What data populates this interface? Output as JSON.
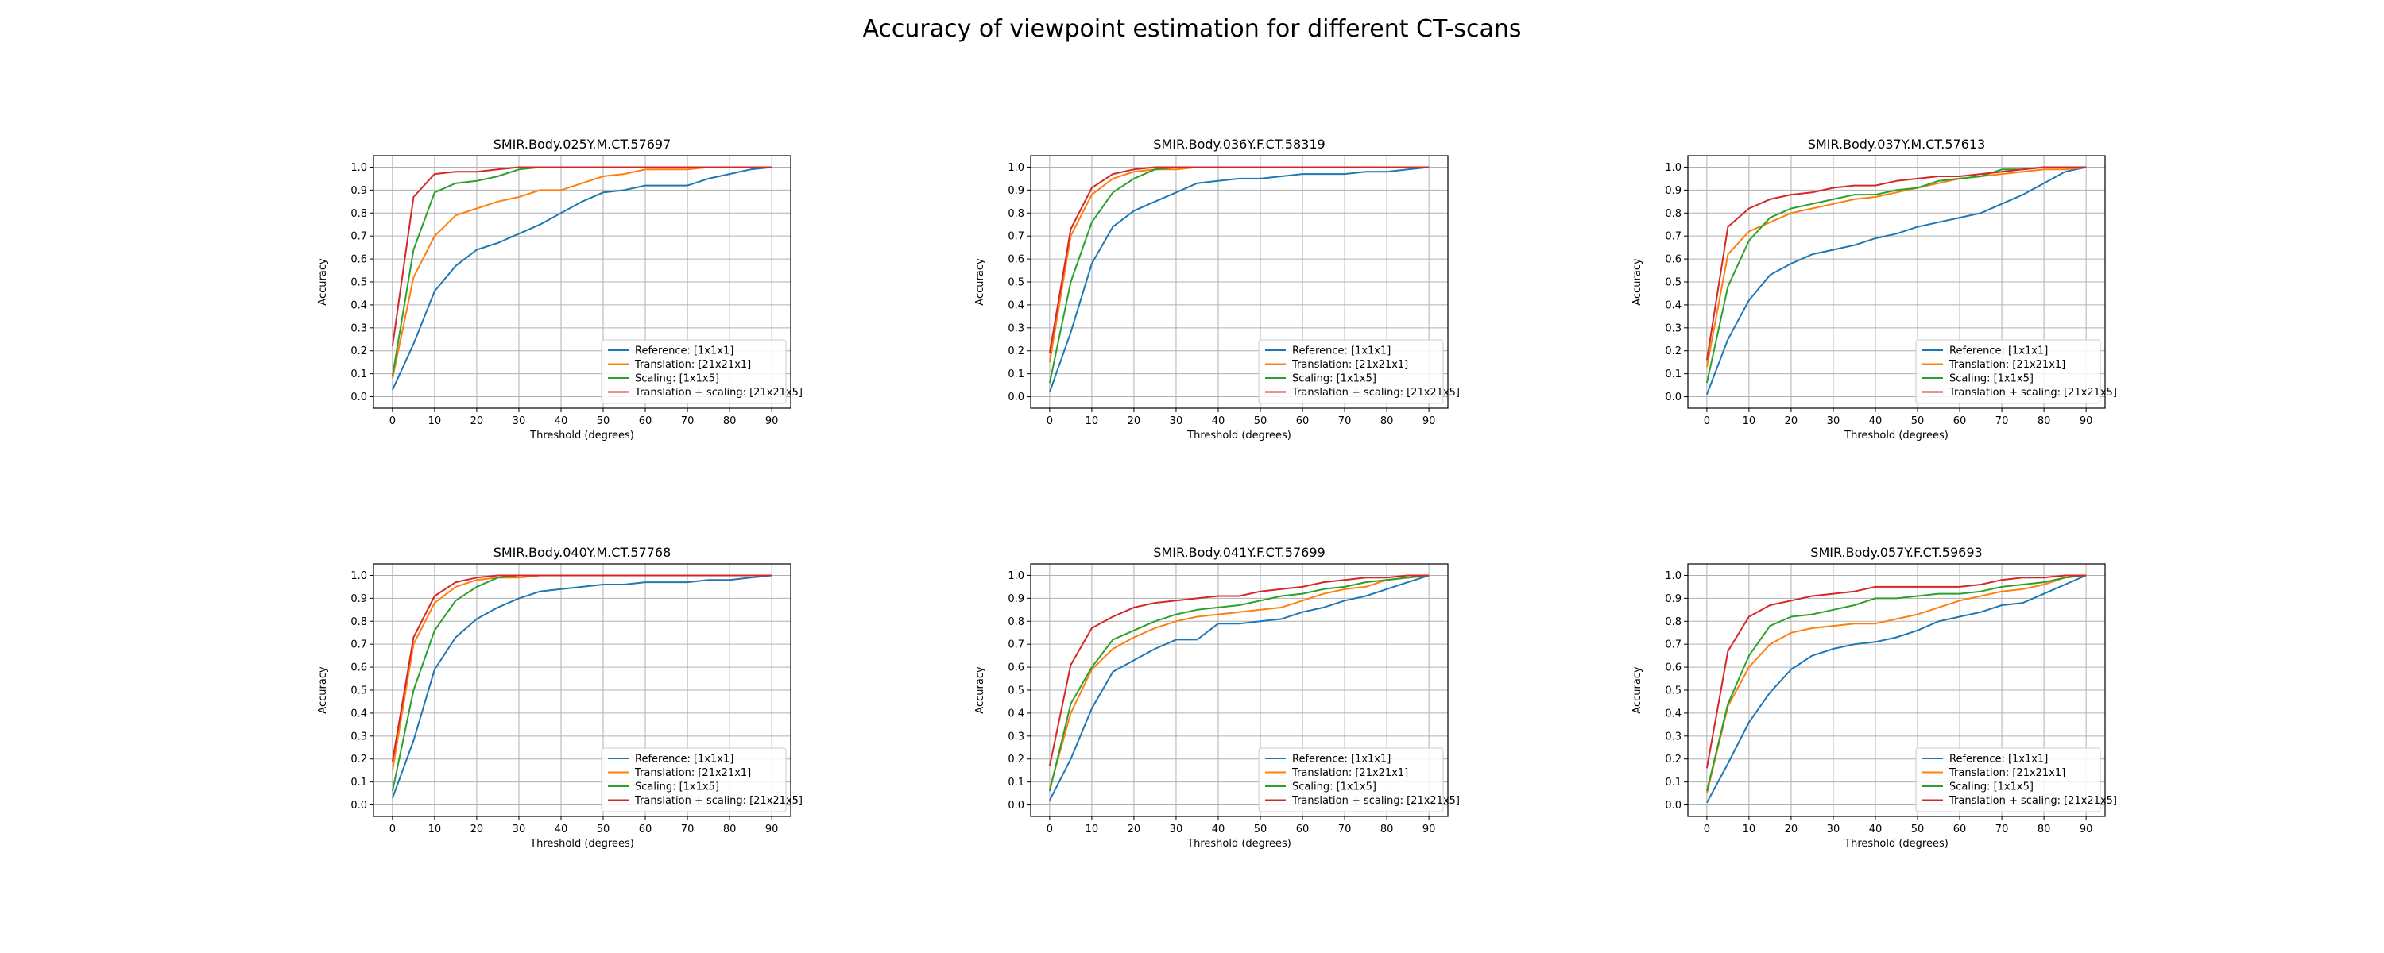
{
  "suptitle": "Accuracy of viewpoint estimation for different CT-scans",
  "series_styles": [
    {
      "name": "Reference: [1x1x1]",
      "color": "#1f77b4"
    },
    {
      "name": "Translation: [21x21x1]",
      "color": "#ff7f0e"
    },
    {
      "name": "Scaling: [1x1x5]",
      "color": "#2ca02c"
    },
    {
      "name": "Translation + scaling: [21x21x5]",
      "color": "#d62728"
    }
  ],
  "chart_data": [
    {
      "type": "line",
      "title": "SMIR.Body.025Y.M.CT.57697",
      "xlabel": "Threshold (degrees)",
      "ylabel": "Accuracy",
      "xlim": [
        0,
        90
      ],
      "ylim": [
        0,
        1
      ],
      "xticks": [
        0,
        10,
        20,
        30,
        40,
        50,
        60,
        70,
        80,
        90
      ],
      "yticks": [
        0.0,
        0.1,
        0.2,
        0.3,
        0.4,
        0.5,
        0.6,
        0.7,
        0.8,
        0.9,
        1.0
      ],
      "grid": true,
      "legend": "lower-right",
      "x": [
        0,
        5,
        10,
        15,
        20,
        25,
        30,
        35,
        40,
        45,
        50,
        55,
        60,
        65,
        70,
        75,
        80,
        85,
        90
      ],
      "series": [
        {
          "name": "Reference: [1x1x1]",
          "values": [
            0.03,
            0.23,
            0.46,
            0.57,
            0.64,
            0.67,
            0.71,
            0.75,
            0.8,
            0.85,
            0.89,
            0.9,
            0.92,
            0.92,
            0.92,
            0.95,
            0.97,
            0.99,
            1.0
          ]
        },
        {
          "name": "Translation: [21x21x1]",
          "values": [
            0.08,
            0.52,
            0.7,
            0.79,
            0.82,
            0.85,
            0.87,
            0.9,
            0.9,
            0.93,
            0.96,
            0.97,
            0.99,
            0.99,
            0.99,
            1.0,
            1.0,
            1.0,
            1.0
          ]
        },
        {
          "name": "Scaling: [1x1x5]",
          "values": [
            0.09,
            0.64,
            0.89,
            0.93,
            0.94,
            0.96,
            0.99,
            1.0,
            1.0,
            1.0,
            1.0,
            1.0,
            1.0,
            1.0,
            1.0,
            1.0,
            1.0,
            1.0,
            1.0
          ]
        },
        {
          "name": "Translation + scaling: [21x21x5]",
          "values": [
            0.22,
            0.87,
            0.97,
            0.98,
            0.98,
            0.99,
            1.0,
            1.0,
            1.0,
            1.0,
            1.0,
            1.0,
            1.0,
            1.0,
            1.0,
            1.0,
            1.0,
            1.0,
            1.0
          ]
        }
      ]
    },
    {
      "type": "line",
      "title": "SMIR.Body.036Y.F.CT.58319",
      "xlabel": "Threshold (degrees)",
      "ylabel": "Accuracy",
      "xlim": [
        0,
        90
      ],
      "ylim": [
        0,
        1
      ],
      "xticks": [
        0,
        10,
        20,
        30,
        40,
        50,
        60,
        70,
        80,
        90
      ],
      "yticks": [
        0.0,
        0.1,
        0.2,
        0.3,
        0.4,
        0.5,
        0.6,
        0.7,
        0.8,
        0.9,
        1.0
      ],
      "grid": true,
      "legend": "lower-right",
      "x": [
        0,
        5,
        10,
        15,
        20,
        25,
        30,
        35,
        40,
        45,
        50,
        55,
        60,
        65,
        70,
        75,
        80,
        85,
        90
      ],
      "series": [
        {
          "name": "Reference: [1x1x1]",
          "values": [
            0.02,
            0.28,
            0.58,
            0.74,
            0.81,
            0.85,
            0.89,
            0.93,
            0.94,
            0.95,
            0.95,
            0.96,
            0.97,
            0.97,
            0.97,
            0.98,
            0.98,
            0.99,
            1.0
          ]
        },
        {
          "name": "Translation: [21x21x1]",
          "values": [
            0.15,
            0.7,
            0.88,
            0.95,
            0.98,
            0.99,
            0.99,
            1.0,
            1.0,
            1.0,
            1.0,
            1.0,
            1.0,
            1.0,
            1.0,
            1.0,
            1.0,
            1.0,
            1.0
          ]
        },
        {
          "name": "Scaling: [1x1x5]",
          "values": [
            0.06,
            0.5,
            0.76,
            0.89,
            0.95,
            0.99,
            1.0,
            1.0,
            1.0,
            1.0,
            1.0,
            1.0,
            1.0,
            1.0,
            1.0,
            1.0,
            1.0,
            1.0,
            1.0
          ]
        },
        {
          "name": "Translation + scaling: [21x21x5]",
          "values": [
            0.19,
            0.73,
            0.91,
            0.97,
            0.99,
            1.0,
            1.0,
            1.0,
            1.0,
            1.0,
            1.0,
            1.0,
            1.0,
            1.0,
            1.0,
            1.0,
            1.0,
            1.0,
            1.0
          ]
        }
      ]
    },
    {
      "type": "line",
      "title": "SMIR.Body.037Y.M.CT.57613",
      "xlabel": "Threshold (degrees)",
      "ylabel": "Accuracy",
      "xlim": [
        0,
        90
      ],
      "ylim": [
        0,
        1
      ],
      "xticks": [
        0,
        10,
        20,
        30,
        40,
        50,
        60,
        70,
        80,
        90
      ],
      "yticks": [
        0.0,
        0.1,
        0.2,
        0.3,
        0.4,
        0.5,
        0.6,
        0.7,
        0.8,
        0.9,
        1.0
      ],
      "grid": true,
      "legend": "lower-right",
      "x": [
        0,
        5,
        10,
        15,
        20,
        25,
        30,
        35,
        40,
        45,
        50,
        55,
        60,
        65,
        70,
        75,
        80,
        85,
        90
      ],
      "series": [
        {
          "name": "Reference: [1x1x1]",
          "values": [
            0.01,
            0.25,
            0.42,
            0.53,
            0.58,
            0.62,
            0.64,
            0.66,
            0.69,
            0.71,
            0.74,
            0.76,
            0.78,
            0.8,
            0.84,
            0.88,
            0.93,
            0.98,
            1.0
          ]
        },
        {
          "name": "Translation: [21x21x1]",
          "values": [
            0.13,
            0.62,
            0.72,
            0.76,
            0.8,
            0.82,
            0.84,
            0.86,
            0.87,
            0.89,
            0.91,
            0.93,
            0.95,
            0.96,
            0.97,
            0.98,
            0.99,
            0.99,
            1.0
          ]
        },
        {
          "name": "Scaling: [1x1x5]",
          "values": [
            0.06,
            0.48,
            0.68,
            0.78,
            0.82,
            0.84,
            0.86,
            0.88,
            0.88,
            0.9,
            0.91,
            0.94,
            0.95,
            0.96,
            0.99,
            0.99,
            1.0,
            1.0,
            1.0
          ]
        },
        {
          "name": "Translation + scaling: [21x21x5]",
          "values": [
            0.16,
            0.74,
            0.82,
            0.86,
            0.88,
            0.89,
            0.91,
            0.92,
            0.92,
            0.94,
            0.95,
            0.96,
            0.96,
            0.97,
            0.98,
            0.99,
            1.0,
            1.0,
            1.0
          ]
        }
      ]
    },
    {
      "type": "line",
      "title": "SMIR.Body.040Y.M.CT.57768",
      "xlabel": "Threshold (degrees)",
      "ylabel": "Accuracy",
      "xlim": [
        0,
        90
      ],
      "ylim": [
        0,
        1
      ],
      "xticks": [
        0,
        10,
        20,
        30,
        40,
        50,
        60,
        70,
        80,
        90
      ],
      "yticks": [
        0.0,
        0.1,
        0.2,
        0.3,
        0.4,
        0.5,
        0.6,
        0.7,
        0.8,
        0.9,
        1.0
      ],
      "grid": true,
      "legend": "lower-right",
      "x": [
        0,
        5,
        10,
        15,
        20,
        25,
        30,
        35,
        40,
        45,
        50,
        55,
        60,
        65,
        70,
        75,
        80,
        85,
        90
      ],
      "series": [
        {
          "name": "Reference: [1x1x1]",
          "values": [
            0.03,
            0.28,
            0.59,
            0.73,
            0.81,
            0.86,
            0.9,
            0.93,
            0.94,
            0.95,
            0.96,
            0.96,
            0.97,
            0.97,
            0.97,
            0.98,
            0.98,
            0.99,
            1.0
          ]
        },
        {
          "name": "Translation: [21x21x1]",
          "values": [
            0.15,
            0.7,
            0.88,
            0.95,
            0.98,
            0.99,
            0.99,
            1.0,
            1.0,
            1.0,
            1.0,
            1.0,
            1.0,
            1.0,
            1.0,
            1.0,
            1.0,
            1.0,
            1.0
          ]
        },
        {
          "name": "Scaling: [1x1x5]",
          "values": [
            0.06,
            0.5,
            0.76,
            0.89,
            0.95,
            0.99,
            1.0,
            1.0,
            1.0,
            1.0,
            1.0,
            1.0,
            1.0,
            1.0,
            1.0,
            1.0,
            1.0,
            1.0,
            1.0
          ]
        },
        {
          "name": "Translation + scaling: [21x21x5]",
          "values": [
            0.19,
            0.73,
            0.91,
            0.97,
            0.99,
            1.0,
            1.0,
            1.0,
            1.0,
            1.0,
            1.0,
            1.0,
            1.0,
            1.0,
            1.0,
            1.0,
            1.0,
            1.0,
            1.0
          ]
        }
      ]
    },
    {
      "type": "line",
      "title": "SMIR.Body.041Y.F.CT.57699",
      "xlabel": "Threshold (degrees)",
      "ylabel": "Accuracy",
      "xlim": [
        0,
        90
      ],
      "ylim": [
        0,
        1
      ],
      "xticks": [
        0,
        10,
        20,
        30,
        40,
        50,
        60,
        70,
        80,
        90
      ],
      "yticks": [
        0.0,
        0.1,
        0.2,
        0.3,
        0.4,
        0.5,
        0.6,
        0.7,
        0.8,
        0.9,
        1.0
      ],
      "grid": true,
      "legend": "lower-right",
      "x": [
        0,
        5,
        10,
        15,
        20,
        25,
        30,
        35,
        40,
        45,
        50,
        55,
        60,
        65,
        70,
        75,
        80,
        85,
        90
      ],
      "series": [
        {
          "name": "Reference: [1x1x1]",
          "values": [
            0.02,
            0.2,
            0.42,
            0.58,
            0.63,
            0.68,
            0.72,
            0.72,
            0.79,
            0.79,
            0.8,
            0.81,
            0.84,
            0.86,
            0.89,
            0.91,
            0.94,
            0.97,
            1.0
          ]
        },
        {
          "name": "Translation: [21x21x1]",
          "values": [
            0.07,
            0.4,
            0.59,
            0.68,
            0.73,
            0.77,
            0.8,
            0.82,
            0.83,
            0.84,
            0.85,
            0.86,
            0.89,
            0.92,
            0.94,
            0.95,
            0.98,
            0.99,
            1.0
          ]
        },
        {
          "name": "Scaling: [1x1x5]",
          "values": [
            0.06,
            0.44,
            0.6,
            0.72,
            0.76,
            0.8,
            0.83,
            0.85,
            0.86,
            0.87,
            0.89,
            0.91,
            0.92,
            0.94,
            0.95,
            0.97,
            0.98,
            0.99,
            1.0
          ]
        },
        {
          "name": "Translation + scaling: [21x21x5]",
          "values": [
            0.17,
            0.61,
            0.77,
            0.82,
            0.86,
            0.88,
            0.89,
            0.9,
            0.91,
            0.91,
            0.93,
            0.94,
            0.95,
            0.97,
            0.98,
            0.99,
            0.99,
            1.0,
            1.0
          ]
        }
      ]
    },
    {
      "type": "line",
      "title": "SMIR.Body.057Y.F.CT.59693",
      "xlabel": "Threshold (degrees)",
      "ylabel": "Accuracy",
      "xlim": [
        0,
        90
      ],
      "ylim": [
        0,
        1
      ],
      "xticks": [
        0,
        10,
        20,
        30,
        40,
        50,
        60,
        70,
        80,
        90
      ],
      "yticks": [
        0.0,
        0.1,
        0.2,
        0.3,
        0.4,
        0.5,
        0.6,
        0.7,
        0.8,
        0.9,
        1.0
      ],
      "grid": true,
      "legend": "lower-right",
      "x": [
        0,
        5,
        10,
        15,
        20,
        25,
        30,
        35,
        40,
        45,
        50,
        55,
        60,
        65,
        70,
        75,
        80,
        85,
        90
      ],
      "series": [
        {
          "name": "Reference: [1x1x1]",
          "values": [
            0.01,
            0.18,
            0.36,
            0.49,
            0.59,
            0.65,
            0.68,
            0.7,
            0.71,
            0.73,
            0.76,
            0.8,
            0.82,
            0.84,
            0.87,
            0.88,
            0.92,
            0.96,
            1.0
          ]
        },
        {
          "name": "Translation: [21x21x1]",
          "values": [
            0.05,
            0.43,
            0.6,
            0.7,
            0.75,
            0.77,
            0.78,
            0.79,
            0.79,
            0.81,
            0.83,
            0.86,
            0.89,
            0.91,
            0.93,
            0.94,
            0.96,
            0.99,
            1.0
          ]
        },
        {
          "name": "Scaling: [1x1x5]",
          "values": [
            0.06,
            0.44,
            0.65,
            0.78,
            0.82,
            0.83,
            0.85,
            0.87,
            0.9,
            0.9,
            0.91,
            0.92,
            0.92,
            0.93,
            0.95,
            0.96,
            0.97,
            0.99,
            1.0
          ]
        },
        {
          "name": "Translation + scaling: [21x21x5]",
          "values": [
            0.16,
            0.67,
            0.82,
            0.87,
            0.89,
            0.91,
            0.92,
            0.93,
            0.95,
            0.95,
            0.95,
            0.95,
            0.95,
            0.96,
            0.98,
            0.99,
            0.99,
            1.0,
            1.0
          ]
        }
      ]
    }
  ]
}
